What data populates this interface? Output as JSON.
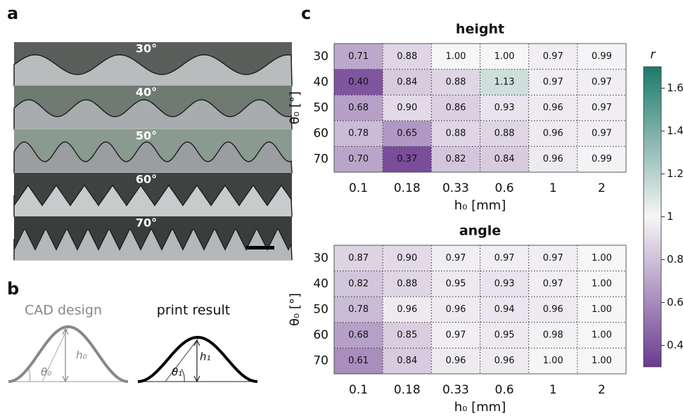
{
  "panel_a": {
    "label": "a",
    "angles": [
      "30°",
      "40°",
      "50°",
      "60°",
      "70°"
    ]
  },
  "panel_b": {
    "label": "b",
    "left_title": "CAD design",
    "right_title": "print result",
    "h0": "h₀",
    "theta0": "θ₀",
    "h1": "h₁",
    "theta1": "θ₁"
  },
  "panel_c": {
    "label": "c"
  },
  "colorbar": {
    "label": "r",
    "lim": [
      0.3,
      1.7
    ],
    "ticks": [
      0.4,
      0.6,
      0.8,
      1,
      1.2,
      1.4,
      1.6
    ],
    "colors": [
      "#6b3a90",
      "#f6f6f6",
      "#1c7a6b"
    ]
  },
  "chart_data": [
    {
      "type": "heatmap",
      "title": "height",
      "xlabel": "h₀ [mm]",
      "ylabel": "θ₀ [°]",
      "x": [
        "0.1",
        "0.18",
        "0.33",
        "0.6",
        "1",
        "2"
      ],
      "y": [
        "30",
        "40",
        "50",
        "60",
        "70"
      ],
      "values": [
        [
          0.71,
          0.88,
          1.0,
          1.0,
          0.97,
          0.99
        ],
        [
          0.4,
          0.84,
          0.88,
          1.13,
          0.97,
          0.97
        ],
        [
          0.68,
          0.9,
          0.86,
          0.93,
          0.96,
          0.97
        ],
        [
          0.78,
          0.65,
          0.88,
          0.88,
          0.96,
          0.97
        ],
        [
          0.7,
          0.37,
          0.82,
          0.84,
          0.96,
          0.99
        ]
      ],
      "value_labels": [
        [
          "0.71",
          "0.88",
          "1.00",
          "1.00",
          "0.97",
          "0.99"
        ],
        [
          "0.40",
          "0.84",
          "0.88",
          "1.13",
          "0.97",
          "0.97"
        ],
        [
          "0.68",
          "0.90",
          "0.86",
          "0.93",
          "0.96",
          "0.97"
        ],
        [
          "0.78",
          "0.65",
          "0.88",
          "0.88",
          "0.96",
          "0.97"
        ],
        [
          "0.70",
          "0.37",
          "0.82",
          "0.84",
          "0.96",
          "0.99"
        ]
      ]
    },
    {
      "type": "heatmap",
      "title": "angle",
      "xlabel": "h₀ [mm]",
      "ylabel": "θ₀ [°]",
      "x": [
        "0.1",
        "0.18",
        "0.33",
        "0.6",
        "1",
        "2"
      ],
      "y": [
        "30",
        "40",
        "50",
        "60",
        "70"
      ],
      "values": [
        [
          0.87,
          0.9,
          0.97,
          0.97,
          0.97,
          1.0
        ],
        [
          0.82,
          0.88,
          0.95,
          0.93,
          0.97,
          1.0
        ],
        [
          0.78,
          0.96,
          0.96,
          0.94,
          0.96,
          1.0
        ],
        [
          0.68,
          0.85,
          0.97,
          0.95,
          0.98,
          1.0
        ],
        [
          0.61,
          0.84,
          0.96,
          0.96,
          1.0,
          1.0
        ]
      ],
      "value_labels": [
        [
          "0.87",
          "0.90",
          "0.97",
          "0.97",
          "0.97",
          "1.00"
        ],
        [
          "0.82",
          "0.88",
          "0.95",
          "0.93",
          "0.97",
          "1.00"
        ],
        [
          "0.78",
          "0.96",
          "0.96",
          "0.94",
          "0.96",
          "1.00"
        ],
        [
          "0.68",
          "0.85",
          "0.97",
          "0.95",
          "0.98",
          "1.00"
        ],
        [
          "0.61",
          "0.84",
          "0.96",
          "0.96",
          "1.00",
          "1.00"
        ]
      ]
    }
  ]
}
